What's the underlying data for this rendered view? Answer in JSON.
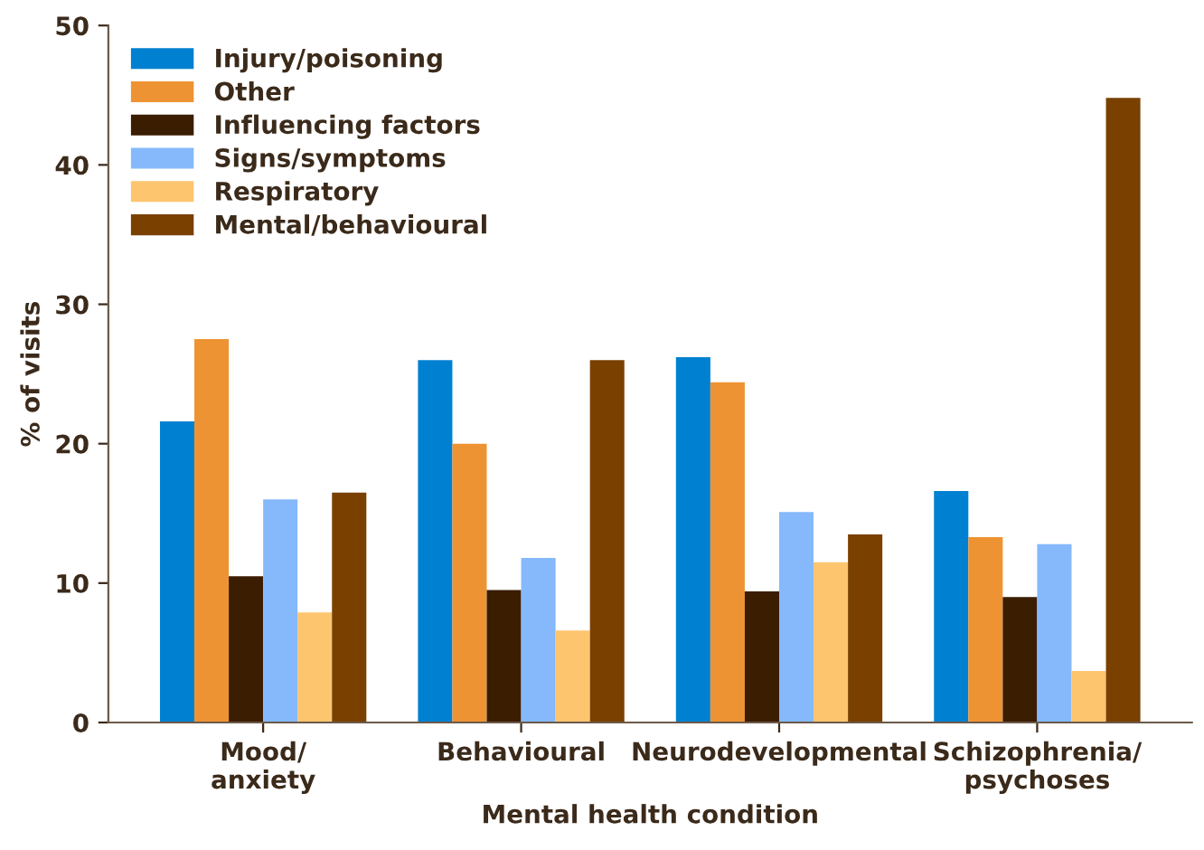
{
  "chart_data": {
    "type": "bar",
    "xlabel": "Mental health condition",
    "ylabel": "% of visits",
    "categories": [
      "Mood/\nanxiety",
      "Behavioural",
      "Neurodevelopmental",
      "Schizophrenia/\npsychoses"
    ],
    "series": [
      {
        "name": "Injury/poisoning",
        "color": "#0080d0",
        "values": [
          21.6,
          26.0,
          26.2,
          16.6
        ]
      },
      {
        "name": "Other",
        "color": "#ee9333",
        "values": [
          27.5,
          20.0,
          24.4,
          13.3
        ]
      },
      {
        "name": "Influencing factors",
        "color": "#3b1d02",
        "values": [
          10.5,
          9.5,
          9.4,
          9.0
        ]
      },
      {
        "name": "Signs/symptoms",
        "color": "#85b9fc",
        "values": [
          16.0,
          11.8,
          15.1,
          12.8
        ]
      },
      {
        "name": "Respiratory",
        "color": "#fec56f",
        "values": [
          7.9,
          6.6,
          11.5,
          3.7
        ]
      },
      {
        "name": "Mental/behavioural",
        "color": "#7a4000",
        "values": [
          16.5,
          26.0,
          13.5,
          44.8
        ]
      }
    ],
    "ylim": [
      0,
      50
    ],
    "yticks": [
      0,
      10,
      20,
      30,
      40,
      50
    ],
    "grid": false,
    "legend": "top left"
  }
}
